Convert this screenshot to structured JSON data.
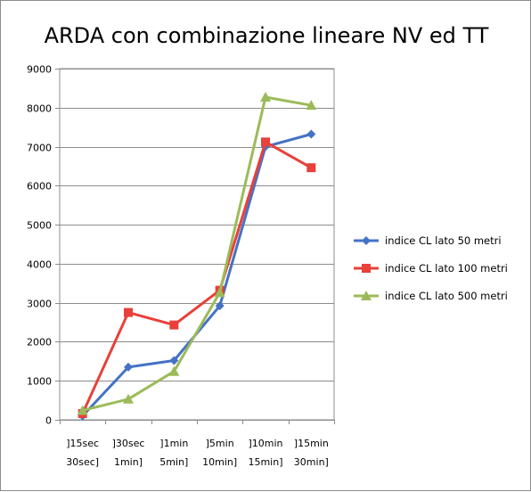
{
  "chart_data": {
    "type": "line",
    "title": "ARDA con combinazione lineare NV ed TT",
    "xlabel": "",
    "ylabel": "",
    "categories": [
      [
        "]15sec",
        "30sec]"
      ],
      [
        "]30sec",
        "1min]"
      ],
      [
        "]1min",
        "5min]"
      ],
      [
        "]5min",
        "10min]"
      ],
      [
        "]10min",
        "15min]"
      ],
      [
        "]15min",
        "30min]"
      ]
    ],
    "ylim": [
      0,
      9000
    ],
    "yticks": [
      0,
      1000,
      2000,
      3000,
      4000,
      5000,
      6000,
      7000,
      8000,
      9000
    ],
    "grid": "horizontal",
    "legend_position": "right",
    "series": [
      {
        "name": "indice CL lato 50 metri",
        "color": "#4472c4",
        "marker": "diamond",
        "values": [
          100,
          1350,
          1520,
          2920,
          7000,
          7320
        ]
      },
      {
        "name": "indice CL lato 100 metri",
        "color": "#e8403a",
        "marker": "square",
        "values": [
          160,
          2750,
          2430,
          3320,
          7120,
          6460
        ]
      },
      {
        "name": "indice CL lato 500 metri",
        "color": "#9bbb59",
        "marker": "triangle",
        "values": [
          240,
          530,
          1240,
          3260,
          8270,
          8060
        ]
      }
    ]
  }
}
